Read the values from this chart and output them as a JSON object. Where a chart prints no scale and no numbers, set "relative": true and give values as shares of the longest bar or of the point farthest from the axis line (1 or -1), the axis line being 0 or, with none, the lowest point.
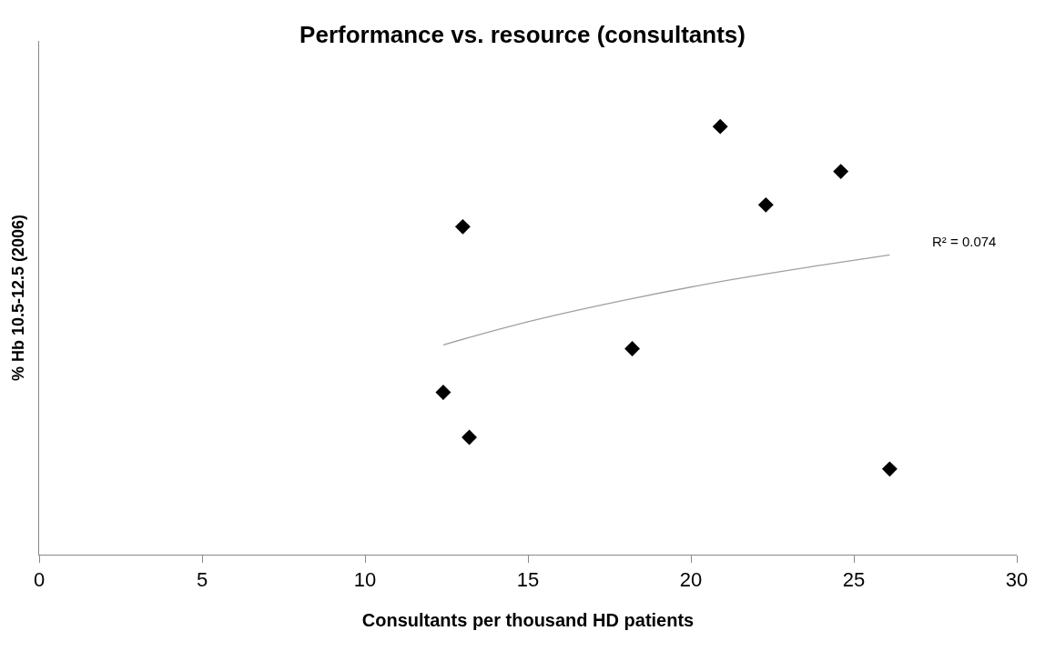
{
  "chart_data": {
    "type": "scatter",
    "title": "Performance vs. resource (consultants)",
    "xlabel": "Consultants per thousand HD patients",
    "ylabel": "% Hb 10.5-12.5 (2006)",
    "relative": true,
    "xlim": [
      0,
      30
    ],
    "xticks": [
      0,
      5,
      10,
      15,
      20,
      25,
      30
    ],
    "tick_labels": "x",
    "marker": "diamond",
    "series": [
      {
        "color": "#000000",
        "x": [
          20.9,
          24.6,
          22.3,
          13.0,
          18.2,
          12.4,
          13.2,
          26.1
        ],
        "values": [
          1,
          0.895,
          0.817,
          0.766,
          0.481,
          0.379,
          0.274,
          0.2
        ]
      },
      {
        "type": "line",
        "color": "#a0a0a0",
        "marker": "none",
        "line_style": "solid",
        "x": [
          12.4,
          15,
          18,
          21,
          24,
          26.1
        ],
        "values": [
          0.49,
          0.544,
          0.595,
          0.639,
          0.676,
          0.7
        ]
      }
    ],
    "annotations": [
      "R² = 0.074"
    ]
  }
}
